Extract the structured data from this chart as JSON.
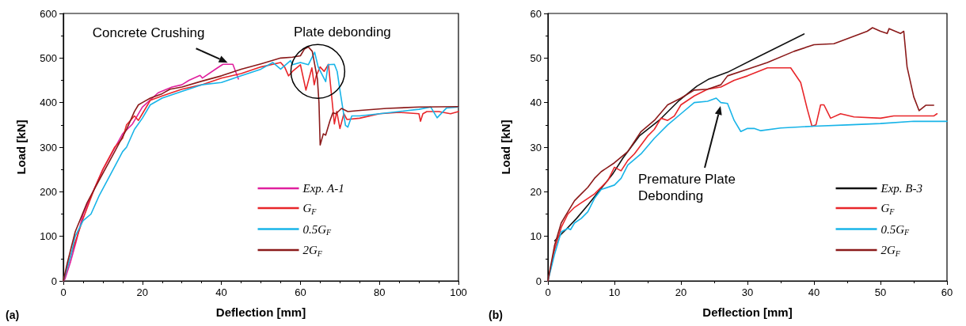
{
  "chart_data": [
    {
      "type": "line",
      "title": "(a)",
      "xlabel": "Deflection [mm]",
      "ylabel": "Load [kN]",
      "xlim": [
        0,
        100
      ],
      "ylim": [
        0,
        600
      ],
      "xticks": [
        0,
        20,
        40,
        60,
        80,
        100
      ],
      "yticks": [
        0,
        100,
        200,
        300,
        400,
        500,
        600
      ],
      "grid": false,
      "legend": "bottom right",
      "marker": "none",
      "line_style": "solid",
      "annotations": [
        {
          "text": "Concrete Crushing",
          "x": 42,
          "y": 486
        },
        {
          "text": "Plate debonding",
          "x": 64,
          "y": 470
        }
      ],
      "series": [
        {
          "name": "Exp. A-1",
          "color": "#e0209e",
          "x": [
            0,
            0.4,
            1.8,
            3.2,
            5,
            10,
            15,
            17.5,
            20,
            24,
            27.5,
            30,
            31.8,
            34.6,
            35.2,
            39,
            40.4,
            42.9,
            44.3
          ],
          "values": [
            0,
            4,
            42,
            87,
            150,
            250,
            330,
            352,
            390,
            422,
            435,
            440,
            450,
            461,
            455,
            478,
            486,
            486,
            453
          ]
        },
        {
          "name": "G$_{F}$",
          "color": "#e8262a",
          "x": [
            0,
            2,
            5,
            8,
            10,
            13,
            15,
            16,
            18,
            19,
            20,
            22,
            25,
            30,
            35,
            40,
            45,
            50,
            55,
            56,
            57,
            58,
            60,
            61.4,
            62.9,
            63.5,
            64,
            65,
            66,
            67.1,
            67.9,
            68.6,
            69.2,
            70,
            71,
            71.8,
            75,
            80,
            85,
            90,
            90.4,
            91,
            92,
            95,
            98,
            100
          ],
          "values": [
            0,
            60,
            140,
            210,
            250,
            300,
            320,
            350,
            370,
            360,
            375,
            405,
            415,
            430,
            440,
            455,
            465,
            480,
            490,
            480,
            460,
            470,
            485,
            428,
            478,
            440,
            460,
            480,
            470,
            486,
            415,
            352,
            380,
            342,
            375,
            362,
            365,
            375,
            378,
            375,
            358,
            375,
            380,
            380,
            375,
            380
          ]
        },
        {
          "name": "0.5G$_{F}$",
          "color": "#18b4e8",
          "x": [
            0,
            2,
            3,
            5,
            7,
            9,
            12,
            15,
            16,
            18,
            20,
            22,
            25,
            30,
            35,
            40,
            45,
            50,
            53,
            55,
            57.5,
            58,
            60,
            62,
            63.6,
            64.5,
            66.4,
            67,
            68.6,
            69.3,
            70,
            71.4,
            72,
            73,
            75,
            80,
            90,
            93,
            94.6,
            97,
            100
          ],
          "values": [
            0,
            60,
            100,
            135,
            150,
            190,
            240,
            290,
            300,
            340,
            365,
            395,
            410,
            425,
            440,
            445,
            460,
            475,
            490,
            475,
            494,
            485,
            490,
            485,
            513,
            480,
            447,
            485,
            486,
            470,
            428,
            349,
            345,
            370,
            370,
            375,
            385,
            390,
            366,
            388,
            390
          ]
        },
        {
          "name": "2G$_{F}$",
          "color": "#8b1a1a",
          "x": [
            0,
            1,
            3,
            6,
            9,
            13,
            16,
            18,
            19,
            20,
            22,
            25,
            27,
            30,
            35,
            40,
            45,
            50,
            55,
            58,
            60,
            61,
            62,
            63,
            64.3,
            64.7,
            65,
            65.8,
            66.4,
            67.5,
            68.2,
            69,
            70.4,
            72,
            74.6,
            81.8,
            90,
            100
          ],
          "values": [
            0,
            40,
            110,
            175,
            225,
            290,
            340,
            380,
            395,
            400,
            410,
            420,
            430,
            435,
            448,
            460,
            475,
            487,
            500,
            502,
            505,
            520,
            525,
            515,
            453,
            400,
            305,
            330,
            327,
            360,
            377,
            375,
            387,
            380,
            382,
            387,
            390,
            391
          ]
        }
      ]
    },
    {
      "type": "line",
      "title": "(b)",
      "xlabel": "Deflection [mm]",
      "ylabel": "Load [kN]",
      "xlim": [
        0,
        60
      ],
      "ylim": [
        0,
        60
      ],
      "xticks": [
        0,
        10,
        20,
        30,
        40,
        50,
        60
      ],
      "yticks": [
        0,
        10,
        20,
        30,
        40,
        50,
        60
      ],
      "grid": false,
      "legend": "bottom right",
      "marker": "none",
      "line_style": "solid",
      "annotations": [
        "Premature Plate Debonding"
      ],
      "series": [
        {
          "name": "Exp. B-3",
          "color": "#111111",
          "x": [
            1.03,
            1.4,
            2.7,
            4.3,
            6,
            7.6,
            9.7,
            11.3,
            13.8,
            16.7,
            19.6,
            22.4,
            24.1,
            27,
            31.5,
            38.5
          ],
          "values": [
            9,
            9.6,
            11.5,
            14,
            17,
            20,
            23.9,
            27.6,
            32.6,
            36,
            40.3,
            43.7,
            45.2,
            46.8,
            50.2,
            55.4
          ]
        },
        {
          "name": "G$_{F}$",
          "color": "#e8262a",
          "x": [
            0,
            1,
            2,
            3,
            4,
            5,
            7,
            9,
            10,
            11,
            12,
            13,
            14,
            15,
            16,
            17,
            18,
            19,
            20,
            22,
            24,
            26,
            28,
            30,
            33,
            36.5,
            38,
            39,
            39.7,
            40.3,
            41,
            41.5,
            42.5,
            44,
            46,
            50,
            52,
            55,
            58,
            58.5
          ],
          "values": [
            0,
            7,
            12,
            15,
            16.5,
            17.5,
            19.5,
            22.5,
            25.5,
            24.7,
            27,
            28.5,
            30.5,
            32.5,
            34,
            36.5,
            36,
            37,
            39.5,
            41.5,
            43,
            43.5,
            45,
            46,
            47.8,
            47.8,
            44.5,
            38.5,
            34.7,
            35,
            39.5,
            39.5,
            36.5,
            37.5,
            36.8,
            36.5,
            37,
            37,
            37,
            37.5
          ]
        },
        {
          "name": "0.5G$_{F}$",
          "color": "#18b4e8",
          "x": [
            0,
            1,
            2,
            3,
            3.4,
            4,
            5,
            6,
            7,
            8,
            10,
            11,
            12,
            14,
            16,
            18,
            20,
            22,
            24,
            25.3,
            26,
            27,
            28,
            29,
            30,
            31,
            32,
            35,
            40,
            45,
            50,
            55,
            60
          ],
          "values": [
            0,
            6,
            11,
            11.8,
            11.5,
            13,
            14,
            15.5,
            18.5,
            20.5,
            21.5,
            23,
            26,
            28.5,
            32,
            35,
            37.5,
            40,
            40.3,
            41,
            40,
            39.8,
            36,
            33.5,
            34.2,
            34.2,
            33.7,
            34.3,
            34.7,
            35,
            35.3,
            35.8,
            35.8
          ]
        },
        {
          "name": "2G$_{F}$",
          "color": "#8b1a1a",
          "x": [
            0,
            1,
            2,
            3,
            4,
            5,
            6,
            7,
            8,
            9,
            10,
            12,
            14,
            16,
            18,
            20,
            22,
            24,
            26,
            27,
            30,
            33,
            37,
            40,
            43,
            48,
            48.8,
            50,
            51,
            51.3,
            53,
            53.5,
            54,
            55,
            55.8,
            56.8,
            57.7,
            58
          ],
          "values": [
            0,
            8,
            13,
            15.5,
            18,
            19.5,
            21,
            23,
            24.5,
            25.5,
            26.5,
            29,
            33.5,
            36,
            39.5,
            41,
            42.8,
            43,
            44,
            46,
            47.5,
            49,
            51.5,
            53,
            53.2,
            56,
            56.8,
            56,
            55.5,
            56.6,
            55.5,
            56,
            48,
            41.3,
            38.2,
            39.4,
            39.4,
            39.4
          ]
        }
      ]
    }
  ]
}
